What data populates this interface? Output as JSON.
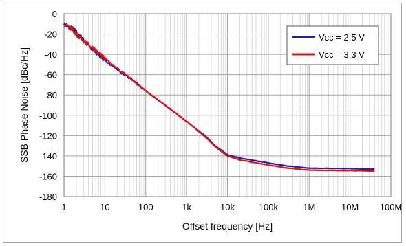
{
  "chart_data": {
    "type": "line",
    "xlabel": "Offset frequency [Hz]",
    "ylabel": "SSB Phase Noise [dBc/Hz]",
    "x_scale": "log",
    "xlim": [
      1,
      100000000
    ],
    "ylim": [
      -180,
      0
    ],
    "x_ticks": [
      1,
      10,
      100,
      1000,
      10000,
      100000,
      1000000,
      10000000,
      100000000
    ],
    "x_tick_labels": [
      "1",
      "10",
      "100",
      "1k",
      "10k",
      "100k",
      "1M",
      "10M",
      "100M"
    ],
    "y_ticks": [
      0,
      -20,
      -40,
      -60,
      -80,
      -100,
      -120,
      -140,
      -160,
      -180
    ],
    "y_tick_labels": [
      "0",
      "-20",
      "-40",
      "-60",
      "-80",
      "-100",
      "-120",
      "-140",
      "-160",
      "-180"
    ],
    "grid": true,
    "legend_position": "top-right",
    "series": [
      {
        "name": "Vcc = 2.5 V",
        "color": "#1f1fa8",
        "points": [
          [
            1,
            -10
          ],
          [
            1.5,
            -14
          ],
          [
            2,
            -18
          ],
          [
            3,
            -26
          ],
          [
            5,
            -35
          ],
          [
            7,
            -40
          ],
          [
            10,
            -46
          ],
          [
            20,
            -55
          ],
          [
            50,
            -66
          ],
          [
            100,
            -76
          ],
          [
            300,
            -90
          ],
          [
            1000,
            -106
          ],
          [
            3000,
            -121
          ],
          [
            5000,
            -130
          ],
          [
            10000,
            -139
          ],
          [
            20000,
            -142
          ],
          [
            100000,
            -147
          ],
          [
            300000,
            -150
          ],
          [
            1000000,
            -152
          ],
          [
            10000000,
            -152.5
          ],
          [
            40000000,
            -153
          ]
        ]
      },
      {
        "name": "Vcc = 3.3 V",
        "color": "#e01010",
        "points": [
          [
            1,
            -11
          ],
          [
            1.5,
            -15
          ],
          [
            2,
            -20
          ],
          [
            3,
            -27
          ],
          [
            5,
            -34
          ],
          [
            7,
            -39
          ],
          [
            10,
            -44
          ],
          [
            20,
            -54
          ],
          [
            50,
            -66
          ],
          [
            100,
            -76
          ],
          [
            300,
            -90
          ],
          [
            1000,
            -106
          ],
          [
            3000,
            -122
          ],
          [
            5000,
            -131
          ],
          [
            10000,
            -140
          ],
          [
            20000,
            -144
          ],
          [
            100000,
            -149
          ],
          [
            300000,
            -152
          ],
          [
            1000000,
            -154
          ],
          [
            10000000,
            -154.5
          ],
          [
            40000000,
            -155
          ]
        ]
      }
    ]
  }
}
